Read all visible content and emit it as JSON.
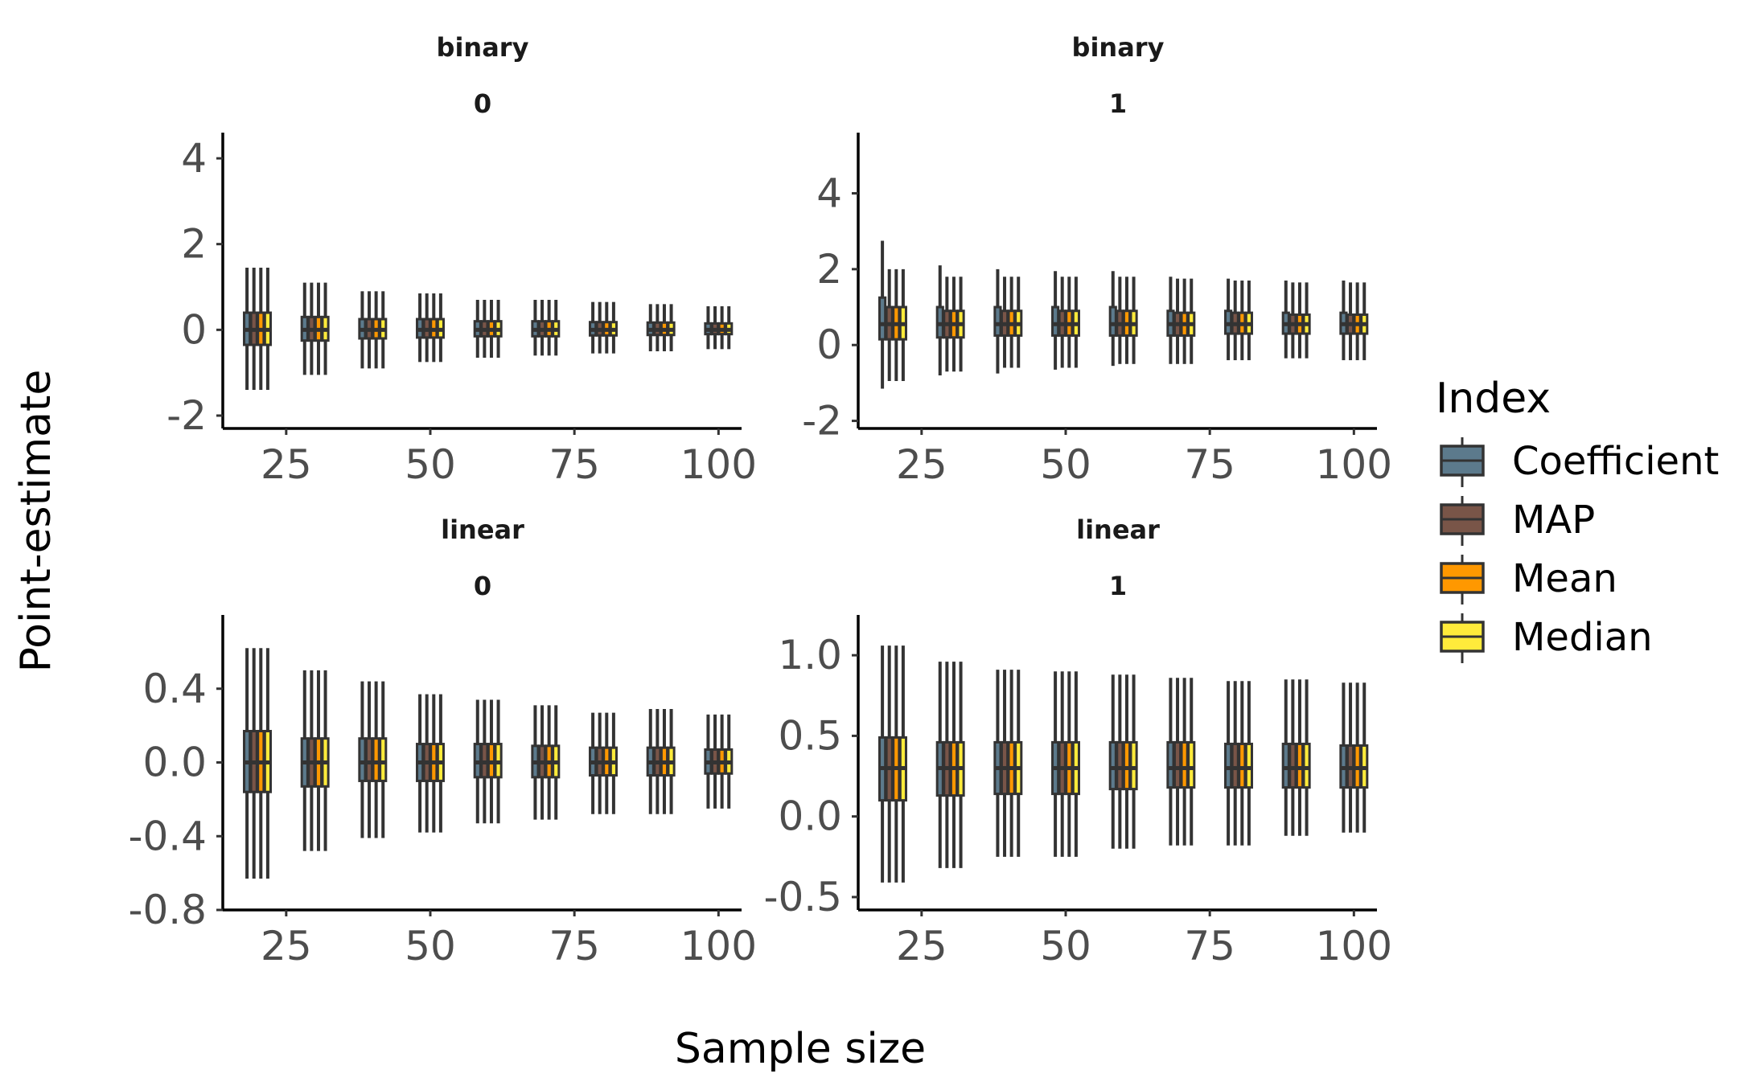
{
  "chart_data": {
    "type": "boxplot",
    "xlabel": "Sample size",
    "ylabel": "Point-estimate",
    "legend": {
      "title": "Index",
      "position": "right",
      "entries": [
        {
          "name": "Coefficient",
          "color": "#5c7a8c"
        },
        {
          "name": "MAP",
          "color": "#795548"
        },
        {
          "name": "Mean",
          "color": "#ff9800"
        },
        {
          "name": "Median",
          "color": "#ffeb3b"
        }
      ]
    },
    "grid": false,
    "x_sample_sizes": [
      20,
      30,
      40,
      50,
      60,
      70,
      80,
      90,
      100
    ],
    "panels": [
      {
        "strip": [
          "binary",
          "0"
        ],
        "xlim": [
          14,
          104
        ],
        "ylim": [
          -2.3,
          4.6
        ],
        "xticks": [
          "25",
          "50",
          "75",
          "100"
        ],
        "xtick_values": [
          25,
          50,
          75,
          100
        ],
        "yticks": [
          "-2",
          "0",
          "2",
          "4"
        ],
        "ytick_values": [
          -2,
          0,
          2,
          4
        ],
        "boxes": [
          {
            "n": 20,
            "min": -1.4,
            "q1": -0.35,
            "med": 0.0,
            "q3": 0.4,
            "max": 1.45
          },
          {
            "n": 30,
            "min": -1.05,
            "q1": -0.25,
            "med": 0.0,
            "q3": 0.3,
            "max": 1.1
          },
          {
            "n": 40,
            "min": -0.9,
            "q1": -0.2,
            "med": 0.0,
            "q3": 0.25,
            "max": 0.9
          },
          {
            "n": 50,
            "min": -0.75,
            "q1": -0.18,
            "med": 0.0,
            "q3": 0.25,
            "max": 0.85
          },
          {
            "n": 60,
            "min": -0.65,
            "q1": -0.15,
            "med": 0.0,
            "q3": 0.2,
            "max": 0.7
          },
          {
            "n": 70,
            "min": -0.6,
            "q1": -0.15,
            "med": 0.0,
            "q3": 0.2,
            "max": 0.7
          },
          {
            "n": 80,
            "min": -0.55,
            "q1": -0.13,
            "med": 0.0,
            "q3": 0.18,
            "max": 0.65
          },
          {
            "n": 90,
            "min": -0.5,
            "q1": -0.12,
            "med": 0.0,
            "q3": 0.17,
            "max": 0.6
          },
          {
            "n": 100,
            "min": -0.45,
            "q1": -0.1,
            "med": 0.0,
            "q3": 0.15,
            "max": 0.55
          }
        ]
      },
      {
        "strip": [
          "binary",
          "1"
        ],
        "xlim": [
          14,
          104
        ],
        "ylim": [
          -2.2,
          5.6
        ],
        "xticks": [
          "25",
          "50",
          "75",
          "100"
        ],
        "xtick_values": [
          25,
          50,
          75,
          100
        ],
        "yticks": [
          "-2",
          "0",
          "2",
          "4"
        ],
        "ytick_values": [
          -2,
          0,
          2,
          4
        ],
        "boxes": [
          {
            "n": 20,
            "min": -1.15,
            "q1": 0.15,
            "med": 0.55,
            "q3": 1.25,
            "max": 2.75,
            "min_others": -0.95,
            "q1_others": 0.15,
            "q3_others": 1.0,
            "max_others": 2.0
          },
          {
            "n": 30,
            "min": -0.8,
            "q1": 0.2,
            "med": 0.55,
            "q3": 1.0,
            "max": 2.1,
            "min_others": -0.7,
            "q1_others": 0.2,
            "q3_others": 0.9,
            "max_others": 1.8
          },
          {
            "n": 40,
            "min": -0.75,
            "q1": 0.25,
            "med": 0.55,
            "q3": 1.0,
            "max": 2.0,
            "min_others": -0.6,
            "q1_others": 0.25,
            "q3_others": 0.9,
            "max_others": 1.8
          },
          {
            "n": 50,
            "min": -0.65,
            "q1": 0.25,
            "med": 0.55,
            "q3": 1.0,
            "max": 1.95,
            "min_others": -0.6,
            "q1_others": 0.25,
            "q3_others": 0.9,
            "max_others": 1.8
          },
          {
            "n": 60,
            "min": -0.55,
            "q1": 0.25,
            "med": 0.55,
            "q3": 1.0,
            "max": 1.95,
            "min_others": -0.5,
            "q1_others": 0.25,
            "q3_others": 0.9,
            "max_others": 1.8
          },
          {
            "n": 70,
            "min": -0.5,
            "q1": 0.25,
            "med": 0.55,
            "q3": 0.9,
            "max": 1.8,
            "min_others": -0.5,
            "q1_others": 0.25,
            "q3_others": 0.85,
            "max_others": 1.75
          },
          {
            "n": 80,
            "min": -0.4,
            "q1": 0.3,
            "med": 0.55,
            "q3": 0.9,
            "max": 1.75,
            "min_others": -0.4,
            "q1_others": 0.3,
            "q3_others": 0.85,
            "max_others": 1.7
          },
          {
            "n": 90,
            "min": -0.35,
            "q1": 0.3,
            "med": 0.55,
            "q3": 0.85,
            "max": 1.7,
            "min_others": -0.35,
            "q1_others": 0.3,
            "q3_others": 0.8,
            "max_others": 1.65
          },
          {
            "n": 100,
            "min": -0.4,
            "q1": 0.3,
            "med": 0.55,
            "q3": 0.85,
            "max": 1.7,
            "min_others": -0.4,
            "q1_others": 0.3,
            "q3_others": 0.8,
            "max_others": 1.65
          }
        ]
      },
      {
        "strip": [
          "linear",
          "0"
        ],
        "xlim": [
          14,
          104
        ],
        "ylim": [
          -0.8,
          0.8
        ],
        "xticks": [
          "25",
          "50",
          "75",
          "100"
        ],
        "xtick_values": [
          25,
          50,
          75,
          100
        ],
        "yticks": [
          "-0.8",
          "-0.4",
          "0.0",
          "0.4"
        ],
        "ytick_values": [
          -0.8,
          -0.4,
          0.0,
          0.4
        ],
        "boxes": [
          {
            "n": 20,
            "min": -0.63,
            "q1": -0.16,
            "med": 0.0,
            "q3": 0.17,
            "max": 0.62
          },
          {
            "n": 30,
            "min": -0.48,
            "q1": -0.13,
            "med": 0.0,
            "q3": 0.13,
            "max": 0.5
          },
          {
            "n": 40,
            "min": -0.41,
            "q1": -0.1,
            "med": 0.0,
            "q3": 0.13,
            "max": 0.44
          },
          {
            "n": 50,
            "min": -0.38,
            "q1": -0.1,
            "med": 0.0,
            "q3": 0.1,
            "max": 0.37
          },
          {
            "n": 60,
            "min": -0.33,
            "q1": -0.08,
            "med": 0.0,
            "q3": 0.1,
            "max": 0.34
          },
          {
            "n": 70,
            "min": -0.31,
            "q1": -0.08,
            "med": 0.0,
            "q3": 0.09,
            "max": 0.31
          },
          {
            "n": 80,
            "min": -0.28,
            "q1": -0.07,
            "med": 0.0,
            "q3": 0.08,
            "max": 0.27
          },
          {
            "n": 90,
            "min": -0.28,
            "q1": -0.07,
            "med": 0.0,
            "q3": 0.08,
            "max": 0.29
          },
          {
            "n": 100,
            "min": -0.25,
            "q1": -0.06,
            "med": 0.0,
            "q3": 0.07,
            "max": 0.26
          }
        ]
      },
      {
        "strip": [
          "linear",
          "1"
        ],
        "xlim": [
          14,
          104
        ],
        "ylim": [
          -0.58,
          1.25
        ],
        "xticks": [
          "25",
          "50",
          "75",
          "100"
        ],
        "xtick_values": [
          25,
          50,
          75,
          100
        ],
        "yticks": [
          "-0.5",
          "0.0",
          "0.5",
          "1.0"
        ],
        "ytick_values": [
          -0.5,
          0.0,
          0.5,
          1.0
        ],
        "boxes": [
          {
            "n": 20,
            "min": -0.41,
            "q1": 0.1,
            "med": 0.3,
            "q3": 0.49,
            "max": 1.06
          },
          {
            "n": 30,
            "min": -0.32,
            "q1": 0.13,
            "med": 0.3,
            "q3": 0.46,
            "max": 0.96
          },
          {
            "n": 40,
            "min": -0.25,
            "q1": 0.14,
            "med": 0.3,
            "q3": 0.46,
            "max": 0.91
          },
          {
            "n": 50,
            "min": -0.25,
            "q1": 0.14,
            "med": 0.3,
            "q3": 0.46,
            "max": 0.9
          },
          {
            "n": 60,
            "min": -0.2,
            "q1": 0.17,
            "med": 0.3,
            "q3": 0.46,
            "max": 0.88
          },
          {
            "n": 70,
            "min": -0.18,
            "q1": 0.18,
            "med": 0.3,
            "q3": 0.46,
            "max": 0.86
          },
          {
            "n": 80,
            "min": -0.18,
            "q1": 0.18,
            "med": 0.3,
            "q3": 0.45,
            "max": 0.84
          },
          {
            "n": 90,
            "min": -0.12,
            "q1": 0.18,
            "med": 0.3,
            "q3": 0.45,
            "max": 0.85
          },
          {
            "n": 100,
            "min": -0.1,
            "q1": 0.18,
            "med": 0.3,
            "q3": 0.44,
            "max": 0.83
          }
        ]
      }
    ]
  }
}
